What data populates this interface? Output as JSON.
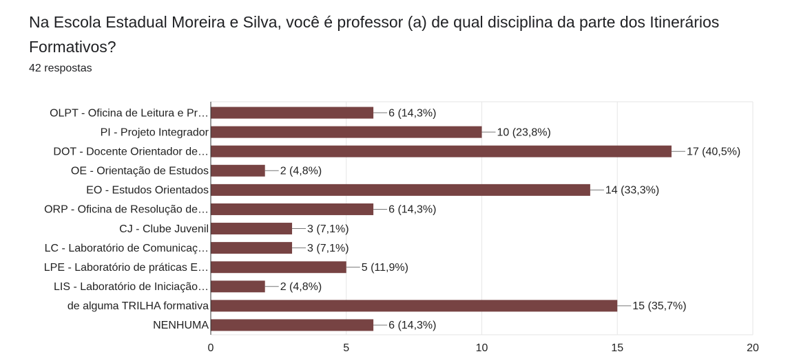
{
  "chart_data": {
    "type": "bar",
    "orientation": "horizontal",
    "title": "Na Escola Estadual Moreira e Silva, você é professor (a) de qual disciplina da parte dos Itinerários Formativos?",
    "subtitle": "42 respostas",
    "categories": [
      "OLPT - Oficina de Leitura e Pr…",
      "PI - Projeto Integrador",
      "DOT - Docente Orientador de…",
      "OE - Orientação de Estudos",
      "EO - Estudos Orientados",
      "ORP - Oficina de Resolução de…",
      "CJ - Clube Juvenil",
      "LC - Laboratório de Comunicaç…",
      "LPE - Laboratório de práticas E…",
      "LIS - Laboratório de Iniciação…",
      "de alguma TRILHA formativa",
      "NENHUMA"
    ],
    "values": [
      6,
      10,
      17,
      2,
      14,
      6,
      3,
      3,
      5,
      2,
      15,
      6
    ],
    "value_labels": [
      "6 (14,3%)",
      "10 (23,8%)",
      "17 (40,5%)",
      "2 (4,8%)",
      "14 (33,3%)",
      "6 (14,3%)",
      "3 (7,1%)",
      "3 (7,1%)",
      "5 (11,9%)",
      "2 (4,8%)",
      "15 (35,7%)",
      "6 (14,3%)"
    ],
    "color": "#774343",
    "xlim": [
      0,
      20
    ],
    "xticks": [
      0,
      5,
      10,
      15,
      20
    ],
    "grid": true
  }
}
